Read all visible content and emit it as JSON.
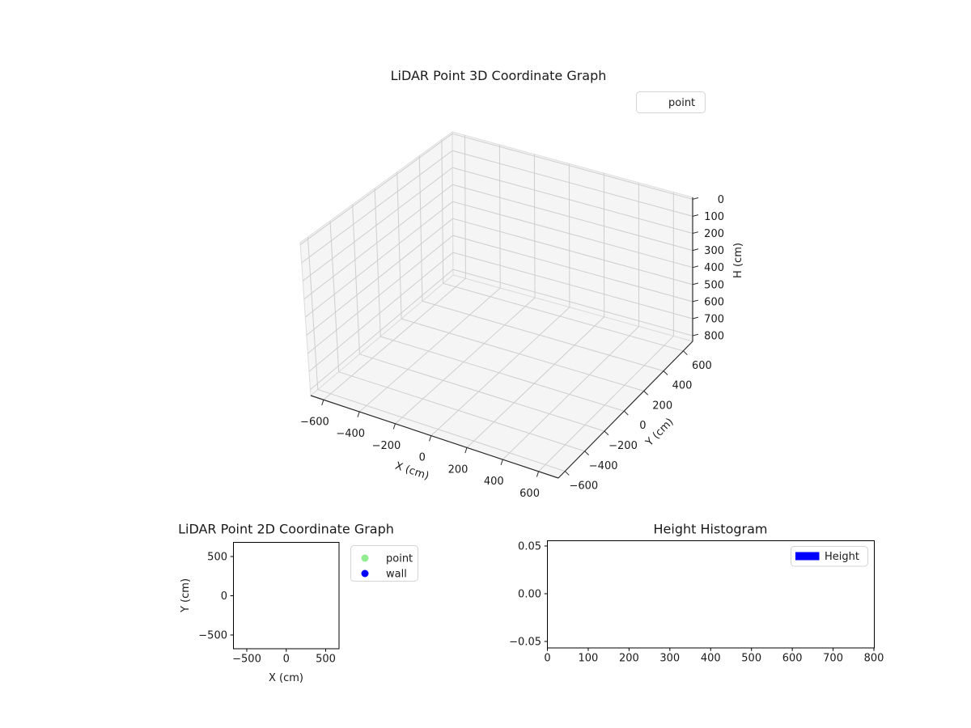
{
  "figure": {
    "background": "#ffffff"
  },
  "colors": {
    "point": "#90ee90",
    "wall": "#0000ff",
    "height_bar": "#0000ff",
    "pane": "#f5f5f5",
    "grid3d": "#cecece",
    "pane_edge": "#dcdcdc",
    "axis_line": "#2b2b2b",
    "legend_border": "#d4d4d4"
  },
  "chart_data": [
    {
      "id": "lidar-3d",
      "type": "scatter3d",
      "title": "LiDAR Point 3D Coordinate Graph",
      "xlabel": "X (cm)",
      "ylabel": "Y (cm)",
      "zlabel": "H (cm)",
      "xlim": [
        -700,
        700
      ],
      "ylim": [
        -700,
        700
      ],
      "zlim": [
        0,
        800
      ],
      "z_axis_inverted": true,
      "grid": true,
      "x_tick_labels": [
        "−600",
        "−400",
        "−200",
        "0",
        "200",
        "400",
        "600"
      ],
      "y_tick_labels": [
        "−600",
        "−400",
        "−200",
        "0",
        "200",
        "400",
        "600"
      ],
      "z_tick_labels": [
        "0",
        "100",
        "200",
        "300",
        "400",
        "500",
        "600",
        "700",
        "800"
      ],
      "legend": {
        "position": "upper-right-outside",
        "entries": [
          {
            "label": "point",
            "marker": "none",
            "color": null
          }
        ]
      },
      "series": [
        {
          "name": "point",
          "points": []
        }
      ]
    },
    {
      "id": "lidar-2d",
      "type": "scatter",
      "title": "LiDAR Point 2D Coordinate Graph",
      "xlabel": "X (cm)",
      "ylabel": "Y (cm)",
      "xlim": [
        -680,
        680
      ],
      "ylim": [
        -680,
        680
      ],
      "grid": false,
      "x_tick_labels": [
        "−500",
        "0",
        "500"
      ],
      "y_tick_labels": [
        "500",
        "0",
        "−500"
      ],
      "legend": {
        "position": "outside-right",
        "entries": [
          {
            "label": "point",
            "marker": "circle",
            "color": "#90ee90"
          },
          {
            "label": "wall",
            "marker": "circle",
            "color": "#0000ff"
          }
        ]
      },
      "series": [
        {
          "name": "point",
          "color": "#90ee90",
          "points": []
        },
        {
          "name": "wall",
          "color": "#0000ff",
          "points": []
        }
      ]
    },
    {
      "id": "height-histogram",
      "type": "bar",
      "title": "Height Histogram",
      "xlabel": "",
      "ylabel": "",
      "xlim": [
        0,
        800
      ],
      "ylim": [
        -0.05,
        0.05
      ],
      "grid": false,
      "x_tick_labels": [
        "0",
        "100",
        "200",
        "300",
        "400",
        "500",
        "600",
        "700",
        "800"
      ],
      "y_tick_labels": [
        "0.05",
        "0.00",
        "−0.05"
      ],
      "legend": {
        "position": "upper-right",
        "entries": [
          {
            "label": "Height",
            "marker": "rect",
            "color": "#0000ff"
          }
        ]
      },
      "values": []
    }
  ]
}
